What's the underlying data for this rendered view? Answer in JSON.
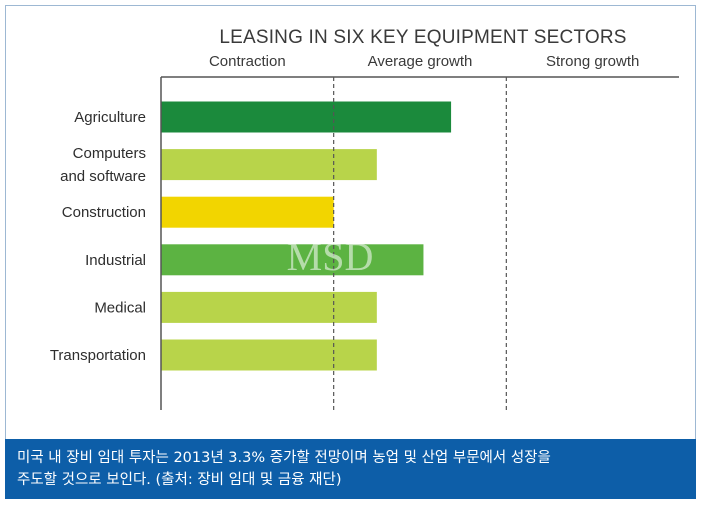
{
  "chart_data": {
    "type": "bar",
    "orientation": "horizontal",
    "title": "LEASING IN SIX KEY EQUIPMENT SECTORS",
    "zones": [
      "Contraction",
      "Average growth",
      "Strong growth"
    ],
    "categories": [
      "Agriculture",
      "Computers\nand software",
      "Construction",
      "Industrial",
      "Medical",
      "Transportation"
    ],
    "values": [
      1.68,
      1.25,
      1.0,
      1.52,
      1.25,
      1.25
    ],
    "xlim": [
      0,
      3
    ],
    "colors": [
      "#1b8a3c",
      "#b8d44a",
      "#f2d500",
      "#5cb342",
      "#b8d44a",
      "#b8d44a"
    ],
    "legend": "none",
    "grid": false,
    "watermark": "MSD"
  },
  "caption": {
    "line1": "미국 내 장비 임대 투자는 2013년 3.3% 증가할 전망이며 농업 및 산업 부문에서 성장을",
    "line2": "주도할 것으로 보인다. (출처: 장비 임대 및 금융 재단)"
  }
}
